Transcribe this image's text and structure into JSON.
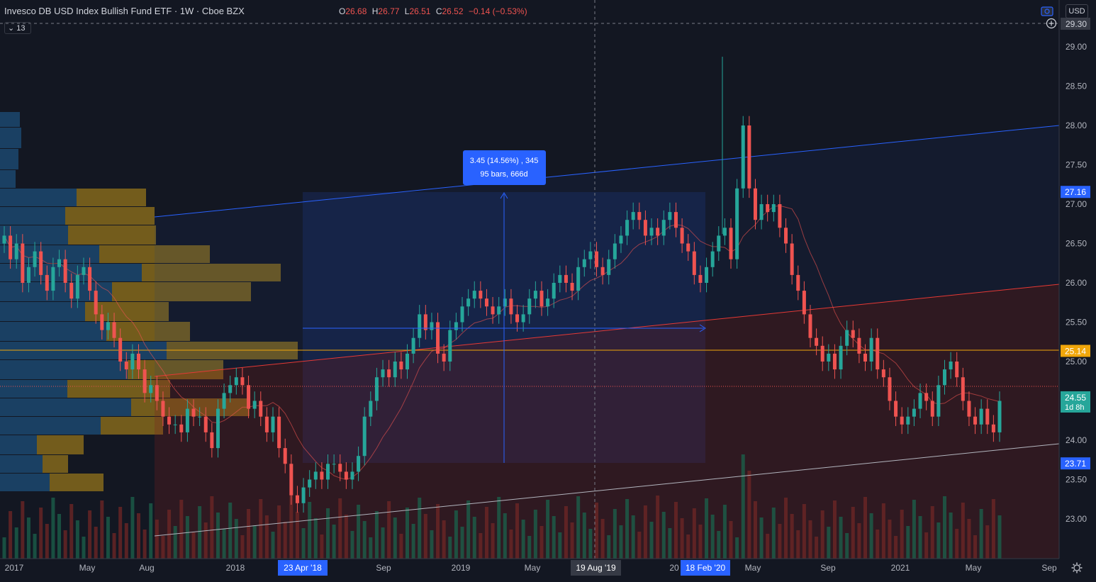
{
  "header": {
    "title": "Invesco DB USD Index Bullish Fund ETF · 1W · Cboe BZX",
    "ohlc": [
      {
        "k": "O",
        "v": "26.68"
      },
      {
        "k": "H",
        "v": "26.77"
      },
      {
        "k": "L",
        "v": "26.51"
      },
      {
        "k": "C",
        "v": "26.52"
      },
      {
        "k": "",
        "v": "−0.14 (−0.53%)"
      }
    ],
    "indicator_count": "13",
    "currency": "USD"
  },
  "measure_tooltip": {
    "line1": "3.45 (14.56%) , 345",
    "line2": "95 bars, 666d"
  },
  "price_axis": {
    "ticks": [
      "29.00",
      "28.50",
      "28.00",
      "27.50",
      "27.00",
      "26.50",
      "26.00",
      "25.50",
      "25.00",
      "24.50",
      "24.00",
      "23.50",
      "23.00"
    ],
    "crosshair_label": "29.30",
    "labels": [
      {
        "text": "27.16",
        "value": 27.16,
        "color": "#2962ff"
      },
      {
        "text": "25.14",
        "value": 25.14,
        "color": "#f0a60a"
      },
      {
        "text": "24.55",
        "sub": "1d 8h",
        "value": 24.55,
        "color": "#26a69a"
      },
      {
        "text": "23.71",
        "value": 23.71,
        "color": "#2962ff"
      }
    ]
  },
  "time_axis": {
    "ticks": [
      "2017",
      "May",
      "Aug",
      "2018",
      "Sep",
      "2019",
      "May",
      "20",
      "May",
      "Sep",
      "2021",
      "May",
      "Sep"
    ],
    "highlights": [
      "23 Apr '18",
      "19 Aug '19",
      "18 Feb '20"
    ]
  },
  "colors": {
    "up": "#26a69a",
    "down": "#ef5350",
    "bg": "#131722",
    "accent": "#2962ff",
    "level": "#f0a60a"
  },
  "icons": [
    "camera-icon",
    "plus-circle-icon",
    "gear-icon",
    "chevron-down-icon"
  ],
  "chart_data": {
    "type": "candlestick",
    "interval": "1W",
    "ylim": [
      22.6,
      29.4
    ],
    "x_start": "2016-12",
    "x_end": "2021-09",
    "closes": [
      26.6,
      26.3,
      26.5,
      26.0,
      26.2,
      26.4,
      26.1,
      25.9,
      26.2,
      26.3,
      26.0,
      25.8,
      26.1,
      26.2,
      25.9,
      25.6,
      25.4,
      25.5,
      25.3,
      25.0,
      24.9,
      25.1,
      24.9,
      24.6,
      24.7,
      24.5,
      24.3,
      24.2,
      24.2,
      24.1,
      24.4,
      24.3,
      24.3,
      24.1,
      23.9,
      24.4,
      24.6,
      24.7,
      24.8,
      24.7,
      24.4,
      24.5,
      24.3,
      24.1,
      24.3,
      23.9,
      23.7,
      23.3,
      23.2,
      23.4,
      23.5,
      23.6,
      23.5,
      23.7,
      23.7,
      23.6,
      23.5,
      23.6,
      23.8,
      24.3,
      24.5,
      24.8,
      24.9,
      24.8,
      25.0,
      24.9,
      25.1,
      25.3,
      25.6,
      25.4,
      25.5,
      25.1,
      25.0,
      25.4,
      25.5,
      25.7,
      25.8,
      25.9,
      25.8,
      25.7,
      25.6,
      25.7,
      25.8,
      25.6,
      25.5,
      25.6,
      25.8,
      25.9,
      25.7,
      25.8,
      26.0,
      26.1,
      26.0,
      25.9,
      26.2,
      26.3,
      26.4,
      26.2,
      26.1,
      26.3,
      26.5,
      26.6,
      26.8,
      26.9,
      26.8,
      26.6,
      26.7,
      26.6,
      26.8,
      26.9,
      26.7,
      26.5,
      26.4,
      26.1,
      26.0,
      26.2,
      26.4,
      26.6,
      26.7,
      26.3,
      27.2,
      28.0,
      27.2,
      26.8,
      27.0,
      26.9,
      27.0,
      26.7,
      26.5,
      26.1,
      25.9,
      25.6,
      25.3,
      25.2,
      25.0,
      25.1,
      24.9,
      25.2,
      25.4,
      25.3,
      25.1,
      25.0,
      25.3,
      24.9,
      24.8,
      24.5,
      24.3,
      24.2,
      24.3,
      24.4,
      24.6,
      24.5,
      24.3,
      24.7,
      24.9,
      25.0,
      24.8,
      24.5,
      24.3,
      24.2,
      24.4,
      24.2,
      24.1,
      24.5
    ]
  }
}
